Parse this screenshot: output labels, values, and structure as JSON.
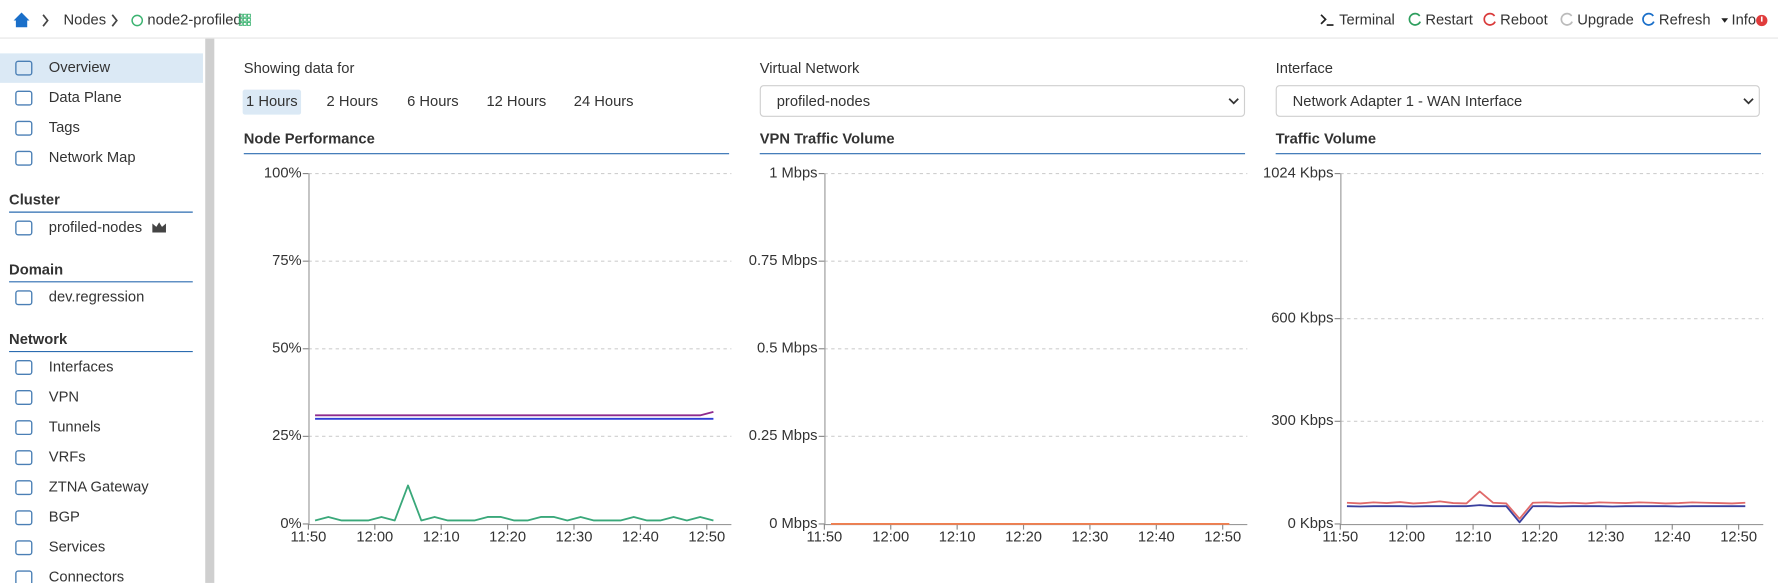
{
  "header": {
    "breadcrumb": [
      "Nodes",
      "node2-profiled"
    ],
    "actions": [
      {
        "label": "Terminal",
        "color": "#222222"
      },
      {
        "label": "Restart",
        "color": "#2e9e5e"
      },
      {
        "label": "Reboot",
        "color": "#d93a3a"
      },
      {
        "label": "Upgrade",
        "color": "#bbbbbb"
      },
      {
        "label": "Refresh",
        "color": "#1a6fc9"
      },
      {
        "label": "Info",
        "color": "#222222"
      }
    ]
  },
  "sidebar": {
    "items": [
      "Overview",
      "Data Plane",
      "Tags",
      "Network Map"
    ],
    "selected": 0,
    "sections": [
      {
        "title": "Cluster",
        "items": [
          "profiled-nodes"
        ]
      },
      {
        "title": "Domain",
        "items": [
          "dev.regression"
        ]
      },
      {
        "title": "Network",
        "items": [
          "Interfaces",
          "VPN",
          "Tunnels",
          "VRFs",
          "ZTNA Gateway",
          "BGP",
          "Services",
          "Connectors"
        ]
      }
    ]
  },
  "controls": {
    "showing_label": "Showing data for",
    "ranges": [
      "1 Hours",
      "2 Hours",
      "6 Hours",
      "12 Hours",
      "24 Hours"
    ],
    "selected": 0,
    "virtual_network_label": "Virtual Network",
    "virtual_network": "profiled-nodes",
    "interface_label": "Interface",
    "interface": "Network Adapter 1 - WAN Interface"
  },
  "chart_data": [
    {
      "type": "line",
      "title": "Node Performance",
      "x": [
        "11:51",
        "11:53",
        "11:55",
        "11:57",
        "11:59",
        "12:01",
        "12:03",
        "12:05",
        "12:07",
        "12:09",
        "12:11",
        "12:13",
        "12:15",
        "12:17",
        "12:19",
        "12:21",
        "12:23",
        "12:25",
        "12:27",
        "12:29",
        "12:31",
        "12:33",
        "12:35",
        "12:37",
        "12:39",
        "12:41",
        "12:43",
        "12:45",
        "12:47",
        "12:49",
        "12:51"
      ],
      "xlim": [
        "11:50",
        "12:52"
      ],
      "xticks": [
        "11:50",
        "12:00",
        "12:10",
        "12:20",
        "12:30",
        "12:40",
        "12:50"
      ],
      "ylim": [
        0,
        100
      ],
      "yticks": [
        {
          "value": 0,
          "label": "0%"
        },
        {
          "value": 25,
          "label": "25%"
        },
        {
          "value": 50,
          "label": "50%"
        },
        {
          "value": 75,
          "label": "75%"
        },
        {
          "value": 100,
          "label": "100%"
        }
      ],
      "grid": true,
      "series": [
        {
          "color": "#8e2a8e",
          "values": [
            31,
            31,
            31,
            31,
            31,
            31,
            31,
            31,
            31,
            31,
            31,
            31,
            31,
            31,
            31,
            31,
            31,
            31,
            31,
            31,
            31,
            31,
            31,
            31,
            31,
            31,
            31,
            31,
            31,
            31,
            32
          ]
        },
        {
          "color": "#2f3fd6",
          "values": [
            30,
            30,
            30,
            30,
            30,
            30,
            30,
            30,
            30,
            30,
            30,
            30,
            30,
            30,
            30,
            30,
            30,
            30,
            30,
            30,
            30,
            30,
            30,
            30,
            30,
            30,
            30,
            30,
            30,
            30,
            30
          ]
        },
        {
          "color": "#3aa87a",
          "values": [
            1,
            2,
            1,
            1,
            1,
            2,
            1,
            11,
            1,
            2,
            1,
            1,
            1,
            2,
            2,
            1,
            1,
            2,
            2,
            1,
            2,
            1,
            1,
            1,
            2,
            1,
            1,
            2,
            1,
            2,
            1
          ]
        }
      ]
    },
    {
      "type": "line",
      "title": "VPN Traffic Volume",
      "x": [
        "11:51",
        "11:53",
        "11:55",
        "11:57",
        "11:59",
        "12:01",
        "12:03",
        "12:05",
        "12:07",
        "12:09",
        "12:11",
        "12:13",
        "12:15",
        "12:17",
        "12:19",
        "12:21",
        "12:23",
        "12:25",
        "12:27",
        "12:29",
        "12:31",
        "12:33",
        "12:35",
        "12:37",
        "12:39",
        "12:41",
        "12:43",
        "12:45",
        "12:47",
        "12:49",
        "12:51"
      ],
      "xlim": [
        "11:50",
        "12:52"
      ],
      "xticks": [
        "11:50",
        "12:00",
        "12:10",
        "12:20",
        "12:30",
        "12:40",
        "12:50"
      ],
      "ylim": [
        0,
        1
      ],
      "yticks": [
        {
          "value": 0,
          "label": "0 Mbps"
        },
        {
          "value": 0.25,
          "label": "0.25 Mbps"
        },
        {
          "value": 0.5,
          "label": "0.5 Mbps"
        },
        {
          "value": 0.75,
          "label": "0.75 Mbps"
        },
        {
          "value": 1,
          "label": "1 Mbps"
        }
      ],
      "grid": true,
      "series": [
        {
          "color": "#f07f50",
          "values": [
            0,
            0,
            0,
            0,
            0,
            0,
            0,
            0,
            0,
            0,
            0,
            0,
            0,
            0,
            0,
            0,
            0,
            0,
            0,
            0,
            0,
            0,
            0,
            0,
            0,
            0,
            0,
            0,
            0,
            0,
            0
          ]
        }
      ]
    },
    {
      "type": "line",
      "title": "Traffic Volume",
      "x": [
        "11:51",
        "11:53",
        "11:55",
        "11:57",
        "11:59",
        "12:01",
        "12:03",
        "12:05",
        "12:07",
        "12:09",
        "12:11",
        "12:13",
        "12:15",
        "12:17",
        "12:19",
        "12:21",
        "12:23",
        "12:25",
        "12:27",
        "12:29",
        "12:31",
        "12:33",
        "12:35",
        "12:37",
        "12:39",
        "12:41",
        "12:43",
        "12:45",
        "12:47",
        "12:49",
        "12:51"
      ],
      "xlim": [
        "11:50",
        "12:52"
      ],
      "xticks": [
        "11:50",
        "12:00",
        "12:10",
        "12:20",
        "12:30",
        "12:40",
        "12:50"
      ],
      "ylim": [
        0,
        1024
      ],
      "yticks": [
        {
          "value": 0,
          "label": "0 Kbps"
        },
        {
          "value": 300,
          "label": "300 Kbps"
        },
        {
          "value": 600,
          "label": "600 Kbps"
        },
        {
          "value": 1024,
          "label": "1024 Kbps"
        }
      ],
      "grid": true,
      "series": [
        {
          "color": "#e06a6a",
          "values": [
            62,
            60,
            63,
            61,
            64,
            60,
            62,
            66,
            61,
            60,
            95,
            62,
            60,
            15,
            62,
            63,
            61,
            62,
            60,
            63,
            62,
            61,
            63,
            62,
            60,
            61,
            63,
            62,
            61,
            60,
            62
          ]
        },
        {
          "color": "#3a3f9e",
          "values": [
            52,
            51,
            52,
            52,
            52,
            51,
            52,
            52,
            52,
            52,
            55,
            52,
            52,
            5,
            52,
            52,
            51,
            52,
            52,
            52,
            51,
            52,
            52,
            52,
            52,
            51,
            52,
            52,
            52,
            52,
            52
          ]
        }
      ]
    }
  ]
}
